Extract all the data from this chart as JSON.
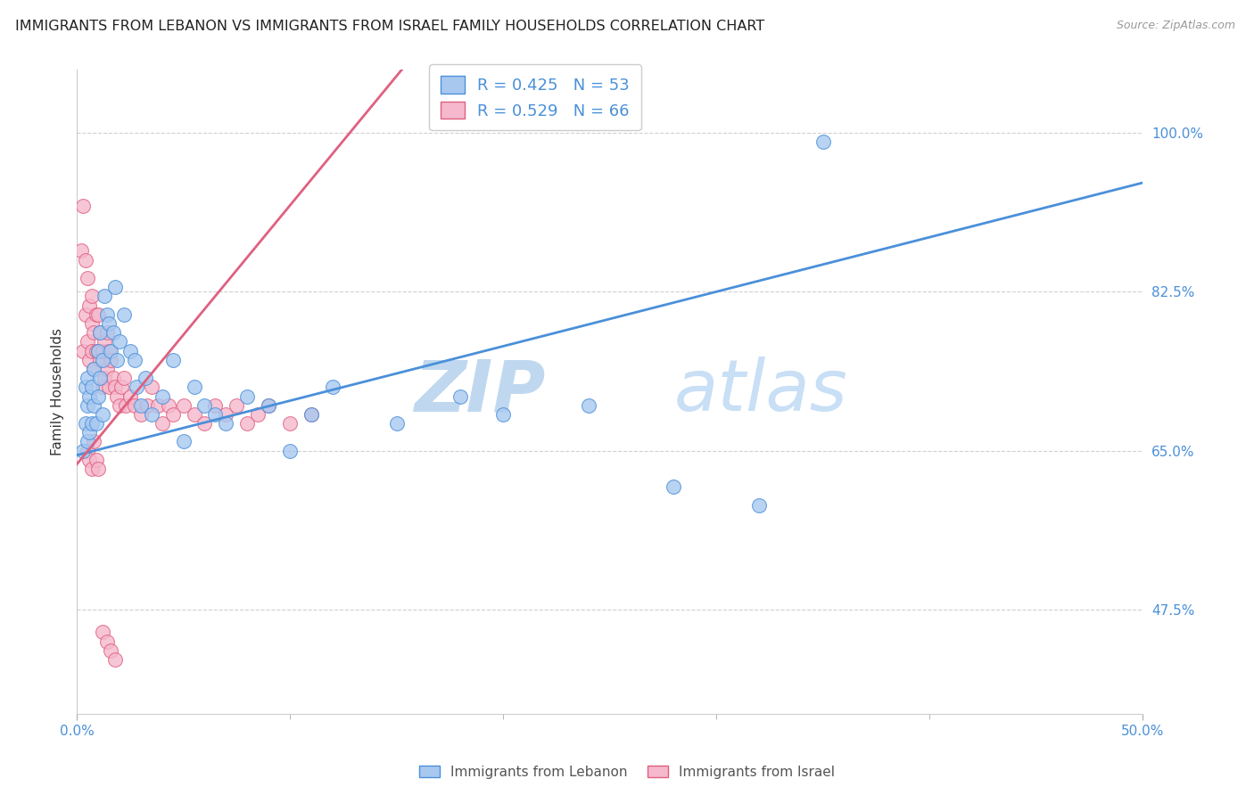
{
  "title": "IMMIGRANTS FROM LEBANON VS IMMIGRANTS FROM ISRAEL FAMILY HOUSEHOLDS CORRELATION CHART",
  "source": "Source: ZipAtlas.com",
  "ylabel": "Family Households",
  "R_lebanon": 0.425,
  "N_lebanon": 53,
  "R_israel": 0.529,
  "N_israel": 66,
  "xlim": [
    0.0,
    0.5
  ],
  "ylim": [
    0.36,
    1.07
  ],
  "y_ticks": [
    0.475,
    0.65,
    0.825,
    1.0
  ],
  "x_ticks": [
    0.0,
    0.1,
    0.2,
    0.3,
    0.4,
    0.5
  ],
  "color_lebanon": "#a8c8f0",
  "color_israel": "#f5b8cc",
  "color_line_lebanon": "#4a90d9",
  "color_line_israel": "#e06080",
  "watermark_zip": "ZIP",
  "watermark_atlas": "atlas",
  "watermark_color": "#c8e0f5",
  "lebanon_x": [
    0.003,
    0.004,
    0.004,
    0.005,
    0.005,
    0.005,
    0.006,
    0.006,
    0.007,
    0.007,
    0.008,
    0.008,
    0.009,
    0.01,
    0.01,
    0.011,
    0.011,
    0.012,
    0.012,
    0.013,
    0.014,
    0.015,
    0.016,
    0.017,
    0.018,
    0.019,
    0.02,
    0.022,
    0.025,
    0.027,
    0.028,
    0.03,
    0.032,
    0.035,
    0.04,
    0.045,
    0.05,
    0.055,
    0.06,
    0.065,
    0.07,
    0.08,
    0.09,
    0.1,
    0.11,
    0.12,
    0.15,
    0.18,
    0.2,
    0.24,
    0.28,
    0.32,
    0.35
  ],
  "lebanon_y": [
    0.65,
    0.68,
    0.72,
    0.66,
    0.7,
    0.73,
    0.67,
    0.71,
    0.68,
    0.72,
    0.7,
    0.74,
    0.68,
    0.71,
    0.76,
    0.73,
    0.78,
    0.69,
    0.75,
    0.82,
    0.8,
    0.79,
    0.76,
    0.78,
    0.83,
    0.75,
    0.77,
    0.8,
    0.76,
    0.75,
    0.72,
    0.7,
    0.73,
    0.69,
    0.71,
    0.75,
    0.66,
    0.72,
    0.7,
    0.69,
    0.68,
    0.71,
    0.7,
    0.65,
    0.69,
    0.72,
    0.68,
    0.71,
    0.69,
    0.7,
    0.61,
    0.59,
    0.99
  ],
  "israel_x": [
    0.002,
    0.003,
    0.003,
    0.004,
    0.004,
    0.005,
    0.005,
    0.006,
    0.006,
    0.007,
    0.007,
    0.007,
    0.008,
    0.008,
    0.009,
    0.009,
    0.01,
    0.01,
    0.011,
    0.011,
    0.012,
    0.012,
    0.013,
    0.013,
    0.014,
    0.014,
    0.015,
    0.015,
    0.016,
    0.017,
    0.018,
    0.019,
    0.02,
    0.021,
    0.022,
    0.023,
    0.025,
    0.027,
    0.03,
    0.033,
    0.035,
    0.038,
    0.04,
    0.043,
    0.045,
    0.05,
    0.055,
    0.06,
    0.065,
    0.07,
    0.075,
    0.08,
    0.085,
    0.09,
    0.1,
    0.11,
    0.005,
    0.006,
    0.007,
    0.008,
    0.009,
    0.01,
    0.012,
    0.014,
    0.016,
    0.018
  ],
  "israel_y": [
    0.87,
    0.92,
    0.76,
    0.8,
    0.86,
    0.84,
    0.77,
    0.81,
    0.75,
    0.79,
    0.82,
    0.76,
    0.78,
    0.74,
    0.8,
    0.76,
    0.76,
    0.8,
    0.78,
    0.75,
    0.76,
    0.72,
    0.73,
    0.77,
    0.74,
    0.78,
    0.76,
    0.72,
    0.75,
    0.73,
    0.72,
    0.71,
    0.7,
    0.72,
    0.73,
    0.7,
    0.71,
    0.7,
    0.69,
    0.7,
    0.72,
    0.7,
    0.68,
    0.7,
    0.69,
    0.7,
    0.69,
    0.68,
    0.7,
    0.69,
    0.7,
    0.68,
    0.69,
    0.7,
    0.68,
    0.69,
    0.65,
    0.64,
    0.63,
    0.66,
    0.64,
    0.63,
    0.45,
    0.44,
    0.43,
    0.42
  ]
}
